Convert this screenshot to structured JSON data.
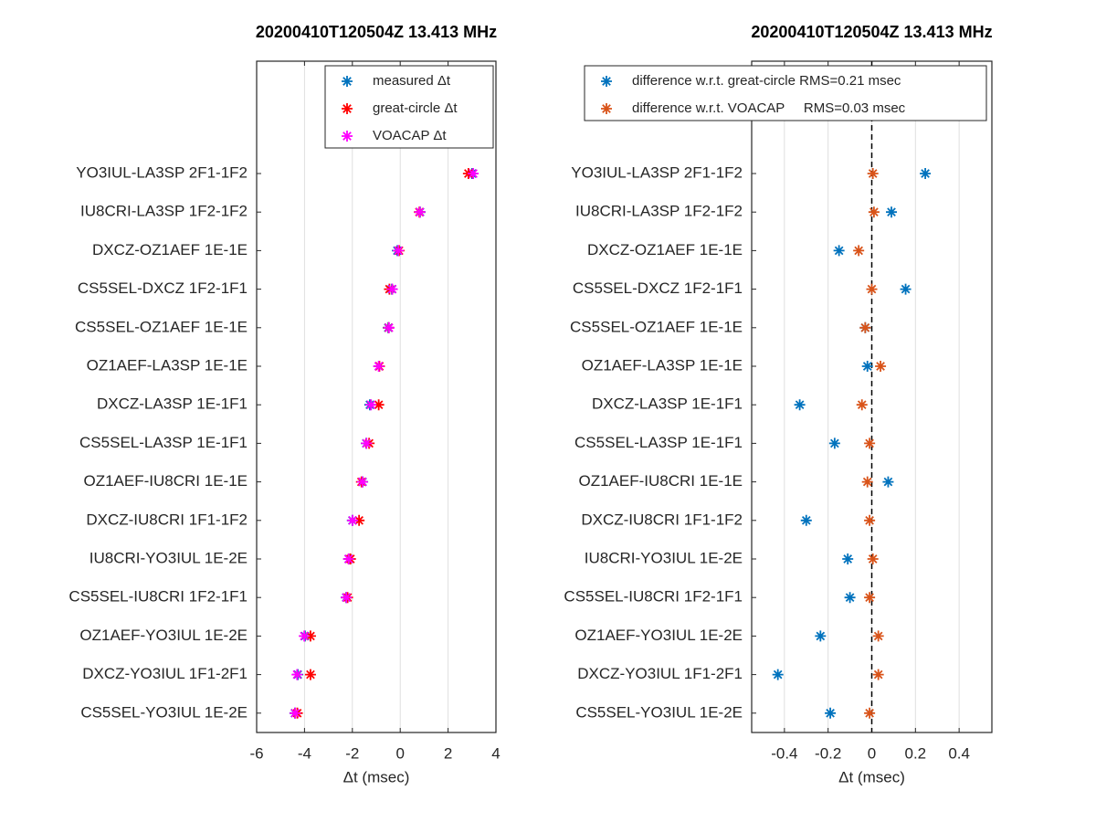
{
  "chart_data": [
    {
      "type": "scatter",
      "title": "20200410T120504Z 13.413 MHz",
      "x_label": "Δt (msec)",
      "categories": [
        "YO3IUL-LA3SP 2F1-1F2",
        "IU8CRI-LA3SP 1F2-1F2",
        "DXCZ-OZ1AEF 1E-1E",
        "CS5SEL-DXCZ 1F2-1F1",
        "CS5SEL-OZ1AEF 1E-1E",
        "OZ1AEF-LA3SP 1E-1E",
        "DXCZ-LA3SP 1E-1F1",
        "CS5SEL-LA3SP 1E-1F1",
        "OZ1AEF-IU8CRI 1E-1E",
        "DXCZ-IU8CRI 1F1-1F2",
        "IU8CRI-YO3IUL 1E-2E",
        "CS5SEL-IU8CRI 1F2-1F1",
        "OZ1AEF-YO3IUL 1E-2E",
        "DXCZ-YO3IUL 1F1-2F1",
        "CS5SEL-YO3IUL 1E-2E"
      ],
      "series": [
        {
          "name": "measured Δt",
          "color": "#0072bd",
          "values": [
            3.0,
            0.83,
            -0.12,
            -0.35,
            -0.5,
            -0.89,
            -1.27,
            -1.42,
            -1.57,
            -2.0,
            -2.15,
            -2.26,
            -3.98,
            -4.28,
            -4.4
          ]
        },
        {
          "name": "great-circle Δt",
          "color": "#ff0000",
          "values": [
            2.85,
            0.8,
            -0.05,
            -0.45,
            -0.48,
            -0.87,
            -0.9,
            -1.3,
            -1.62,
            -1.72,
            -2.08,
            -2.2,
            -3.75,
            -3.75,
            -4.3
          ]
        },
        {
          "name": "VOACAP Δt",
          "color": "#ff00ff",
          "values": [
            3.05,
            0.82,
            -0.08,
            -0.33,
            -0.47,
            -0.9,
            -1.22,
            -1.41,
            -1.58,
            -1.99,
            -2.16,
            -2.25,
            -4.01,
            -4.31,
            -4.39
          ]
        }
      ],
      "xlim": [
        -6,
        4
      ],
      "xticks": [
        -6,
        -4,
        -2,
        0,
        2,
        4
      ],
      "grid": true,
      "legend": "northeast"
    },
    {
      "type": "scatter",
      "title": "20200410T120504Z 13.413 MHz",
      "x_label": "Δt (msec)",
      "categories": [
        "YO3IUL-LA3SP 2F1-1F2",
        "IU8CRI-LA3SP 1F2-1F2",
        "DXCZ-OZ1AEF 1E-1E",
        "CS5SEL-DXCZ 1F2-1F1",
        "CS5SEL-OZ1AEF 1E-1E",
        "OZ1AEF-LA3SP 1E-1E",
        "DXCZ-LA3SP 1E-1F1",
        "CS5SEL-LA3SP 1E-1F1",
        "OZ1AEF-IU8CRI 1E-1E",
        "DXCZ-IU8CRI 1F1-1F2",
        "IU8CRI-YO3IUL 1E-2E",
        "CS5SEL-IU8CRI 1F2-1F1",
        "OZ1AEF-YO3IUL 1E-2E",
        "DXCZ-YO3IUL 1F1-2F1",
        "CS5SEL-YO3IUL 1E-2E"
      ],
      "series": [
        {
          "name": "difference w.r.t. great-circle RMS=0.21 msec",
          "color": "#0072bd",
          "values": [
            0.245,
            0.09,
            -0.15,
            0.155,
            -0.03,
            -0.02,
            -0.33,
            -0.17,
            0.075,
            -0.3,
            -0.11,
            -0.1,
            -0.235,
            -0.43,
            -0.19
          ]
        },
        {
          "name": "difference w.r.t. VOACAP     RMS=0.03 msec",
          "color": "#d95319",
          "values": [
            0.005,
            0.01,
            -0.06,
            0.0,
            -0.03,
            0.04,
            -0.045,
            -0.01,
            -0.02,
            -0.01,
            0.005,
            -0.01,
            0.03,
            0.03,
            -0.01
          ]
        }
      ],
      "xlim": [
        -0.55,
        0.55
      ],
      "xticks": [
        -0.4,
        -0.2,
        0,
        0.2,
        0.4
      ],
      "grid": true,
      "legend": "north",
      "vline": 0
    }
  ]
}
